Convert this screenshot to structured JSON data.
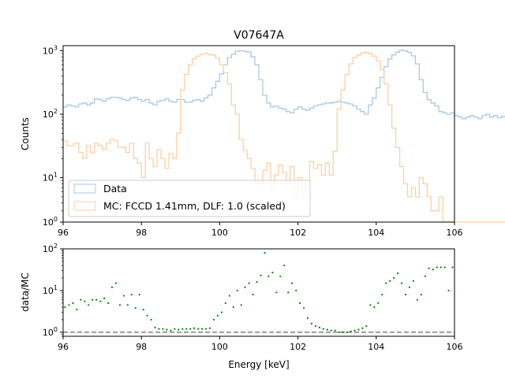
{
  "figure": {
    "title": "V07647A",
    "xlabel": "Energy [keV]"
  },
  "colors": {
    "data": "#aac9e0",
    "mc": "#fdcfa6",
    "ratio_points": "#008000",
    "ratio_line": "#808080"
  },
  "chart_data": [
    {
      "type": "line",
      "panel": "top",
      "scale_y": "log",
      "ylabel": "Counts",
      "xlim": [
        96,
        106
      ],
      "ylim": [
        2,
        1200
      ],
      "xticks": [
        "96",
        "98",
        "100",
        "102",
        "104",
        "106"
      ],
      "yticks": [
        "10^0",
        "10^1",
        "10^2",
        "10^3"
      ],
      "legend": {
        "placement": "lower-left",
        "entries": [
          "Data",
          "MC: FCCD 1.41mm, DLF: 1.0 (scaled)"
        ]
      },
      "bin_edges_start": 96.0,
      "bin_width": 0.1,
      "series": [
        {
          "name": "Data",
          "style": "step",
          "values": [
            130,
            140,
            135,
            130,
            145,
            150,
            140,
            150,
            175,
            170,
            160,
            175,
            185,
            185,
            180,
            170,
            165,
            180,
            185,
            170,
            160,
            170,
            150,
            140,
            160,
            165,
            175,
            160,
            155,
            170,
            170,
            155,
            155,
            165,
            170,
            160,
            180,
            200,
            260,
            330,
            430,
            600,
            780,
            880,
            980,
            1000,
            980,
            950,
            800,
            600,
            350,
            200,
            150,
            130,
            135,
            125,
            120,
            110,
            105,
            120,
            130,
            120,
            115,
            125,
            135,
            140,
            145,
            150,
            150,
            155,
            160,
            155,
            150,
            145,
            135,
            120,
            110,
            100,
            140,
            180,
            260,
            380,
            560,
            740,
            860,
            950,
            1020,
            990,
            940,
            830,
            620,
            350,
            220,
            170,
            150,
            135,
            110,
            105,
            100,
            105,
            95,
            90,
            85,
            90,
            95,
            90,
            85,
            95,
            100,
            90,
            95,
            88,
            92,
            85,
            90,
            95,
            88,
            90,
            85,
            95,
            70
          ]
        },
        {
          "name": "MC: FCCD 1.41mm, DLF: 1.0 (scaled)",
          "style": "step",
          "values": [
            38,
            32,
            32,
            35,
            25,
            20,
            32,
            25,
            35,
            32,
            28,
            35,
            40,
            38,
            30,
            30,
            25,
            35,
            20,
            17,
            10,
            35,
            20,
            15,
            28,
            20,
            14,
            24,
            20,
            50,
            240,
            420,
            600,
            750,
            820,
            880,
            900,
            880,
            850,
            760,
            600,
            450,
            300,
            140,
            100,
            40,
            27,
            20,
            14,
            9,
            8,
            13,
            17,
            7,
            11,
            16,
            12,
            8,
            15,
            5,
            10,
            5,
            9,
            18,
            14,
            16,
            11,
            17,
            11,
            26,
            120,
            240,
            420,
            620,
            780,
            850,
            920,
            940,
            900,
            820,
            700,
            500,
            300,
            140,
            60,
            30,
            15,
            8,
            5,
            7,
            5,
            10,
            8,
            5,
            3,
            3,
            5,
            2,
            2,
            2,
            2,
            2,
            2,
            2,
            2,
            2,
            2,
            2,
            2,
            2,
            2,
            2,
            2,
            2,
            2,
            2,
            2,
            2,
            2,
            2
          ]
        }
      ]
    },
    {
      "type": "scatter",
      "panel": "bottom",
      "scale_y": "log",
      "ylabel": "data/MC",
      "xlabel": "Energy [keV]",
      "xlim": [
        96,
        106
      ],
      "ylim": [
        0.8,
        100
      ],
      "xticks": [
        "96",
        "98",
        "100",
        "102",
        "104",
        "106"
      ],
      "yticks": [
        "10^0",
        "10^1",
        "10^2"
      ],
      "reference_line": 1,
      "x": [
        96.05,
        96.15,
        96.25,
        96.35,
        96.45,
        96.55,
        96.65,
        96.75,
        96.85,
        96.95,
        97.05,
        97.15,
        97.25,
        97.35,
        97.45,
        97.55,
        97.65,
        97.75,
        97.85,
        97.95,
        98.05,
        98.15,
        98.25,
        98.35,
        98.45,
        98.55,
        98.65,
        98.75,
        98.85,
        98.95,
        99.05,
        99.15,
        99.25,
        99.35,
        99.45,
        99.55,
        99.65,
        99.75,
        99.85,
        99.95,
        100.05,
        100.15,
        100.25,
        100.35,
        100.45,
        100.55,
        100.65,
        100.75,
        100.85,
        100.95,
        101.05,
        101.15,
        101.25,
        101.35,
        101.45,
        101.55,
        101.65,
        101.75,
        101.85,
        101.95,
        102.05,
        102.15,
        102.25,
        102.35,
        102.45,
        102.55,
        102.65,
        102.75,
        102.85,
        102.95,
        103.05,
        103.15,
        103.25,
        103.35,
        103.45,
        103.55,
        103.65,
        103.75,
        103.85,
        103.95,
        104.05,
        104.15,
        104.25,
        104.35,
        104.45,
        104.55,
        104.65,
        104.75,
        104.85,
        104.95,
        105.05,
        105.15,
        105.25,
        105.35,
        105.45,
        105.55,
        105.65,
        105.75,
        105.85,
        105.95
      ],
      "values": [
        4.0,
        4.5,
        5.0,
        3.5,
        6.0,
        5.5,
        4.5,
        6.0,
        6.0,
        5.5,
        6.5,
        5.0,
        12.0,
        15.0,
        4.5,
        7.5,
        4.5,
        8.0,
        3.8,
        8.0,
        3.5,
        2.5,
        2.0,
        1.3,
        1.2,
        1.2,
        1.15,
        1.1,
        1.2,
        1.15,
        1.2,
        1.2,
        1.2,
        1.25,
        1.2,
        1.2,
        1.2,
        1.25,
        2.0,
        2.5,
        3.0,
        5.0,
        7.5,
        4.0,
        10.0,
        4.5,
        12.0,
        15.0,
        8.0,
        16.0,
        23.0,
        80.0,
        22.0,
        27.0,
        9.0,
        22.0,
        40.0,
        9.0,
        15.0,
        10.0,
        5.0,
        3.8,
        2.2,
        1.6,
        1.4,
        1.3,
        1.2,
        1.15,
        1.1,
        1.1,
        1.0,
        1.0,
        1.0,
        1.05,
        1.1,
        1.15,
        1.25,
        1.4,
        4.5,
        4.0,
        5.0,
        8.0,
        15.0,
        17.0,
        20.0,
        26.0,
        15.0,
        8.0,
        12.0,
        17.0,
        6.0,
        8.0,
        22.0,
        34.0,
        32.0,
        36.0,
        36.0,
        36.0,
        10.0,
        36.0
      ]
    }
  ]
}
